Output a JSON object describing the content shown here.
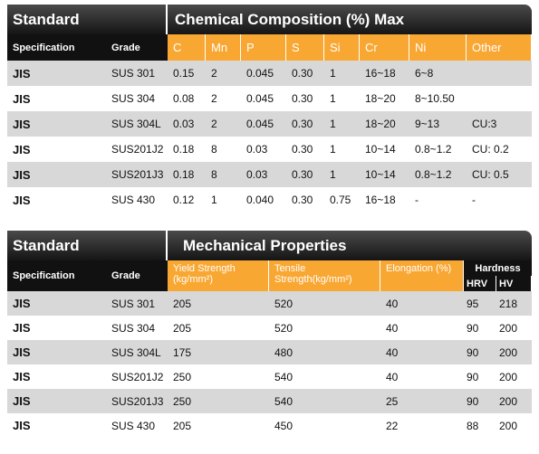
{
  "table1": {
    "header_left": "Standard",
    "title": "Chemical Composition (%) Max",
    "columns": [
      "Specification",
      "Grade",
      "C",
      "Mn",
      "P",
      "S",
      "Si",
      "Cr",
      "Ni",
      "Other"
    ],
    "rows": [
      [
        "JIS",
        "SUS 301",
        "0.15",
        "2",
        "0.045",
        "0.30",
        "1",
        "16~18",
        "6~8",
        ""
      ],
      [
        "JIS",
        "SUS 304",
        "0.08",
        "2",
        "0.045",
        "0.30",
        "1",
        "18~20",
        "8~10.50",
        ""
      ],
      [
        "JIS",
        "SUS 304L",
        "0.03",
        "2",
        "0.045",
        "0.30",
        "1",
        "18~20",
        "9~13",
        "CU:3"
      ],
      [
        "JIS",
        "SUS201J2",
        "0.18",
        "8",
        "0.03",
        "0.30",
        "1",
        "10~14",
        "0.8~1.2",
        "CU: 0.2"
      ],
      [
        "JIS",
        "SUS201J3",
        "0.18",
        "8",
        "0.03",
        "0.30",
        "1",
        "10~14",
        "0.8~1.2",
        "CU: 0.5"
      ],
      [
        "JIS",
        "SUS 430",
        "0.12",
        "1",
        "0.040",
        "0.30",
        "0.75",
        "16~18",
        "-",
        "-"
      ]
    ]
  },
  "table2": {
    "header_left": "Standard",
    "title": "Mechanical Properties",
    "columns": [
      "Specification",
      "Grade",
      "Yield Strength (kg/mm²)",
      "Tensile Strength(kg/mm²)",
      "Elongation (%)"
    ],
    "hardness": "Hardness",
    "hardness_columns": [
      "HRV",
      "HV"
    ],
    "rows": [
      [
        "JIS",
        "SUS 301",
        "205",
        "520",
        "40",
        "95",
        "218"
      ],
      [
        "JIS",
        "SUS 304",
        "205",
        "520",
        "40",
        "90",
        "200"
      ],
      [
        "JIS",
        "SUS 304L",
        "175",
        "480",
        "40",
        "90",
        "200"
      ],
      [
        "JIS",
        "SUS201J2",
        "250",
        "540",
        "40",
        "90",
        "200"
      ],
      [
        "JIS",
        "SUS201J3",
        "250",
        "540",
        "25",
        "90",
        "200"
      ],
      [
        "JIS",
        "SUS 430",
        "205",
        "450",
        "22",
        "88",
        "200"
      ]
    ]
  }
}
